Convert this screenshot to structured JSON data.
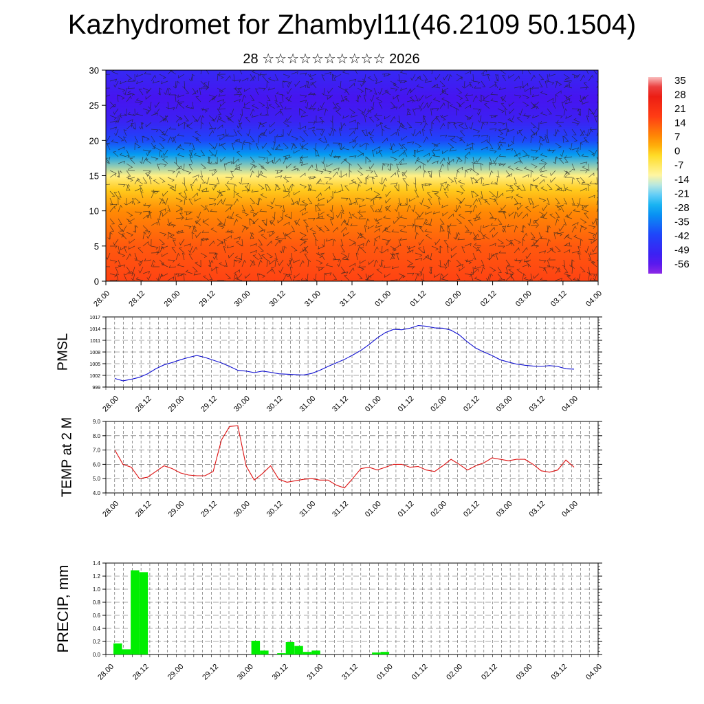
{
  "title": "Kazhydromet for Zhambyl11(46.2109 50.1504)",
  "subtitle": "28 ☆☆☆☆☆☆☆☆☆☆ 2026",
  "x_ticks": [
    "28.00",
    "28.12",
    "29.00",
    "29.12",
    "30.00",
    "30.12",
    "31.00",
    "31.12",
    "01.00",
    "01.12",
    "02.00",
    "02.12",
    "03.00",
    "03.12",
    "04.00"
  ],
  "colors": {
    "pmsl_line": "#1010d0",
    "temp_line": "#dd1010",
    "precip_bar": "#00ee00",
    "wind_barb": "#222222"
  },
  "chart_data": [
    {
      "type": "heatmap",
      "title": "",
      "xlabel": "",
      "ylabel": "",
      "ylim": [
        0,
        30
      ],
      "y_ticks": [
        "0",
        "5",
        "10",
        "15",
        "20",
        "25",
        "30"
      ],
      "categories": [
        "28.00",
        "28.12",
        "29.00",
        "29.12",
        "30.00",
        "30.12",
        "31.00",
        "31.12",
        "01.00",
        "01.12",
        "02.00",
        "02.12",
        "03.00",
        "03.12",
        "04.00"
      ],
      "colorbar": {
        "labels": [
          "35",
          "28",
          "21",
          "14",
          "7",
          "0",
          "-7",
          "-14",
          "-21",
          "-28",
          "-35",
          "-42",
          "-49",
          "-56"
        ],
        "range": [
          -63,
          42
        ]
      },
      "profile": [
        {
          "level": 0,
          "value": 20
        },
        {
          "level": 5,
          "value": 17
        },
        {
          "level": 10,
          "value": 10
        },
        {
          "level": 13,
          "value": 2
        },
        {
          "level": 15,
          "value": -8
        },
        {
          "level": 18,
          "value": -30
        },
        {
          "level": 20,
          "value": -42
        },
        {
          "level": 23,
          "value": -53
        },
        {
          "level": 26,
          "value": -56
        },
        {
          "level": 30,
          "value": -50
        }
      ],
      "overlay": "wind barbs"
    },
    {
      "type": "line",
      "title": "",
      "xlabel": "",
      "ylabel": "PMSL",
      "ylim": [
        999,
        1017
      ],
      "y_ticks": [
        "999",
        "1002",
        "1005",
        "1008",
        "1011",
        "1014",
        "1017"
      ],
      "categories": [
        "28.00",
        "28.12",
        "29.00",
        "29.12",
        "30.00",
        "30.12",
        "31.00",
        "31.12",
        "01.00",
        "01.12",
        "02.00",
        "02.12",
        "03.00",
        "03.12",
        "04.00"
      ],
      "x": [
        0,
        0.25,
        0.5,
        0.75,
        1,
        1.25,
        1.5,
        1.75,
        2,
        2.25,
        2.5,
        2.75,
        3,
        3.25,
        3.5,
        3.75,
        4,
        4.25,
        4.5,
        4.75,
        5,
        5.25,
        5.5,
        5.75,
        6,
        6.25,
        6.5,
        6.75,
        7,
        7.25,
        7.5,
        7.75,
        8,
        8.25,
        8.5,
        8.75,
        9,
        9.25,
        9.5,
        9.75,
        10,
        10.25,
        10.5,
        10.75,
        11,
        11.25,
        11.5,
        11.75,
        12,
        12.25,
        12.5,
        12.75,
        13,
        13.25,
        13.5,
        13.75,
        14
      ],
      "series": [
        {
          "values": [
            1001.2,
            1000.6,
            1001.0,
            1001.5,
            1002.4,
            1003.7,
            1004.7,
            1005.3,
            1006.0,
            1006.6,
            1007.1,
            1006.6,
            1005.9,
            1005.2,
            1004.3,
            1003.3,
            1003.1,
            1002.7,
            1003.1,
            1002.8,
            1002.4,
            1002.3,
            1002.2,
            1002.1,
            1002.5,
            1003.3,
            1004.3,
            1005.2,
            1006.1,
            1007.2,
            1008.4,
            1009.9,
            1011.6,
            1013.0,
            1013.8,
            1013.7,
            1014.1,
            1014.8,
            1014.6,
            1014.2,
            1014.1,
            1013.6,
            1012.4,
            1010.6,
            1009.0,
            1008.0,
            1007.1,
            1006.0,
            1005.4,
            1004.9,
            1004.6,
            1004.4,
            1004.3,
            1004.5,
            1004.3,
            1003.7,
            1003.6
          ]
        }
      ]
    },
    {
      "type": "line",
      "title": "",
      "xlabel": "",
      "ylabel": "TEMP at 2 M",
      "ylim": [
        4.0,
        9.0
      ],
      "y_ticks": [
        "4.0",
        "5.0",
        "6.0",
        "7.0",
        "8.0",
        "9.0"
      ],
      "categories": [
        "28.00",
        "28.12",
        "29.00",
        "29.12",
        "30.00",
        "30.12",
        "31.00",
        "31.12",
        "01.00",
        "01.12",
        "02.00",
        "02.12",
        "03.00",
        "03.12",
        "04.00"
      ],
      "x": [
        0,
        0.25,
        0.5,
        0.75,
        1,
        1.25,
        1.5,
        1.75,
        2,
        2.25,
        2.5,
        2.75,
        3,
        3.25,
        3.5,
        3.75,
        4,
        4.25,
        4.5,
        4.75,
        5,
        5.25,
        5.5,
        5.75,
        6,
        6.25,
        6.5,
        6.75,
        7,
        7.25,
        7.5,
        7.75,
        8,
        8.25,
        8.5,
        8.75,
        9,
        9.25,
        9.5,
        9.75,
        10,
        10.25,
        10.5,
        10.75,
        11,
        11.25,
        11.5,
        11.75,
        12,
        12.25,
        12.5,
        12.75,
        13,
        13.25,
        13.5,
        13.75,
        14
      ],
      "series": [
        {
          "values": [
            7.0,
            6.0,
            5.8,
            5.0,
            5.1,
            5.5,
            5.9,
            5.7,
            5.4,
            5.25,
            5.2,
            5.2,
            5.5,
            7.7,
            8.65,
            8.7,
            5.9,
            4.9,
            5.35,
            5.9,
            4.95,
            4.75,
            4.85,
            4.95,
            5.0,
            4.9,
            4.9,
            4.55,
            4.35,
            5.0,
            5.7,
            5.8,
            5.6,
            5.8,
            6.0,
            6.0,
            5.8,
            5.85,
            5.6,
            5.5,
            5.9,
            6.35,
            6.0,
            5.6,
            5.9,
            6.1,
            6.45,
            6.35,
            6.25,
            6.35,
            6.35,
            6.0,
            5.55,
            5.45,
            5.6,
            6.3,
            5.8
          ]
        }
      ]
    },
    {
      "type": "bar",
      "title": "",
      "xlabel": "",
      "ylabel": "PRECIP, mm",
      "ylim": [
        0,
        1.4
      ],
      "y_ticks": [
        "0.0",
        "0.2",
        "0.4",
        "0.6",
        "0.8",
        "1.0",
        "1.2",
        "1.4"
      ],
      "categories": [
        "28.00",
        "28.12",
        "29.00",
        "29.12",
        "30.00",
        "30.12",
        "31.00",
        "31.12",
        "01.00",
        "01.12",
        "02.00",
        "02.12",
        "03.00",
        "03.12",
        "04.00"
      ],
      "x": [
        0,
        0.25,
        0.5,
        0.75,
        1,
        1.25,
        1.5,
        1.75,
        2,
        2.25,
        2.5,
        2.75,
        3,
        3.25,
        3.5,
        3.75,
        4,
        4.25,
        4.5,
        4.75,
        5,
        5.25,
        5.5,
        5.75,
        6,
        6.25,
        6.5,
        6.75,
        7,
        7.25,
        7.5,
        7.75,
        8,
        8.25,
        8.5,
        8.75,
        9,
        9.25,
        9.5,
        9.75,
        10,
        10.25,
        10.5,
        10.75,
        11,
        11.25,
        11.5,
        11.75,
        12,
        12.25,
        12.5,
        12.75,
        13,
        13.25,
        13.5,
        13.75
      ],
      "series": [
        {
          "values": [
            0.17,
            0.08,
            1.29,
            1.26,
            0,
            0,
            0,
            0,
            0,
            0,
            0,
            0,
            0,
            0,
            0,
            0,
            0.21,
            0.06,
            0,
            0.02,
            0.19,
            0.13,
            0.04,
            0.06,
            0,
            0,
            0,
            0,
            0,
            0,
            0.03,
            0.04,
            0,
            0,
            0,
            0,
            0,
            0,
            0,
            0,
            0,
            0,
            0,
            0,
            0,
            0,
            0,
            0,
            0,
            0,
            0,
            0,
            0,
            0,
            0,
            0
          ]
        }
      ]
    }
  ]
}
